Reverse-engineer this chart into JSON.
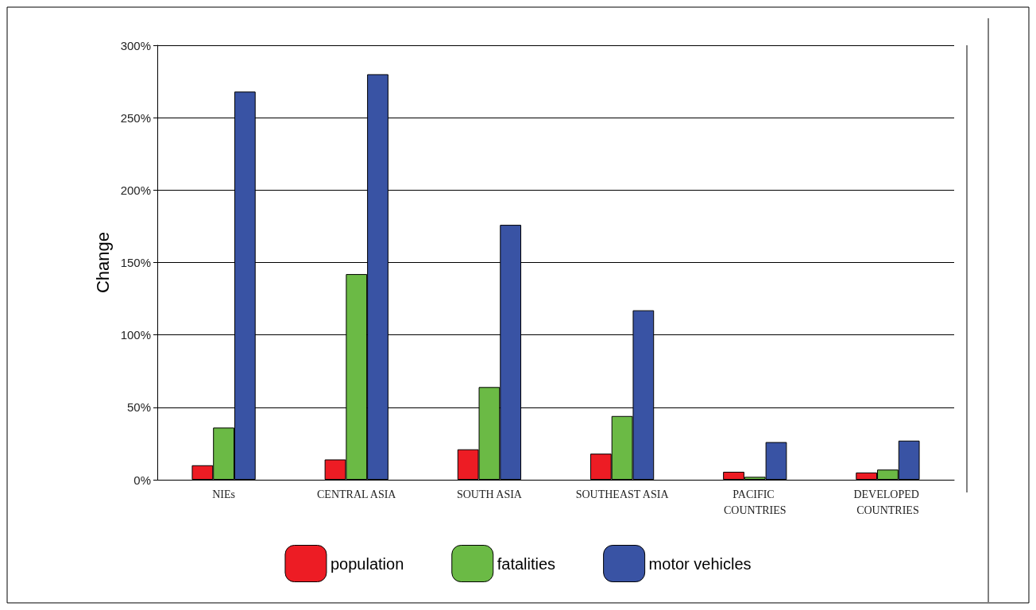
{
  "chart_data": {
    "type": "bar",
    "ylabel": "Change",
    "categories": [
      "NIEs",
      "CENTRAL ASIA",
      "SOUTH ASIA",
      "SOUTHEAST ASIA",
      "PACIFIC COUNTRIES",
      "DEVELOPED COUNTRIES"
    ],
    "series": [
      {
        "name": "population",
        "color": "#ed1c24",
        "values": [
          10,
          14,
          21,
          18,
          5.5,
          5
        ]
      },
      {
        "name": "fatalities",
        "color": "#6bba45",
        "values": [
          36,
          142,
          64,
          44,
          2,
          7
        ]
      },
      {
        "name": "motor vehicles",
        "color": "#3953a4",
        "values": [
          268,
          280,
          176,
          117,
          26,
          27
        ]
      }
    ],
    "ylim": [
      0,
      300
    ],
    "yticks": [
      {
        "value": 0,
        "label": "0%"
      },
      {
        "value": 50,
        "label": "50%"
      },
      {
        "value": 100,
        "label": "100%"
      },
      {
        "value": 150,
        "label": "150%"
      },
      {
        "value": 200,
        "label": "200%"
      },
      {
        "value": 250,
        "label": "250%"
      },
      {
        "value": 300,
        "label": "300%"
      }
    ],
    "grid": "y",
    "legend": "bottom"
  }
}
